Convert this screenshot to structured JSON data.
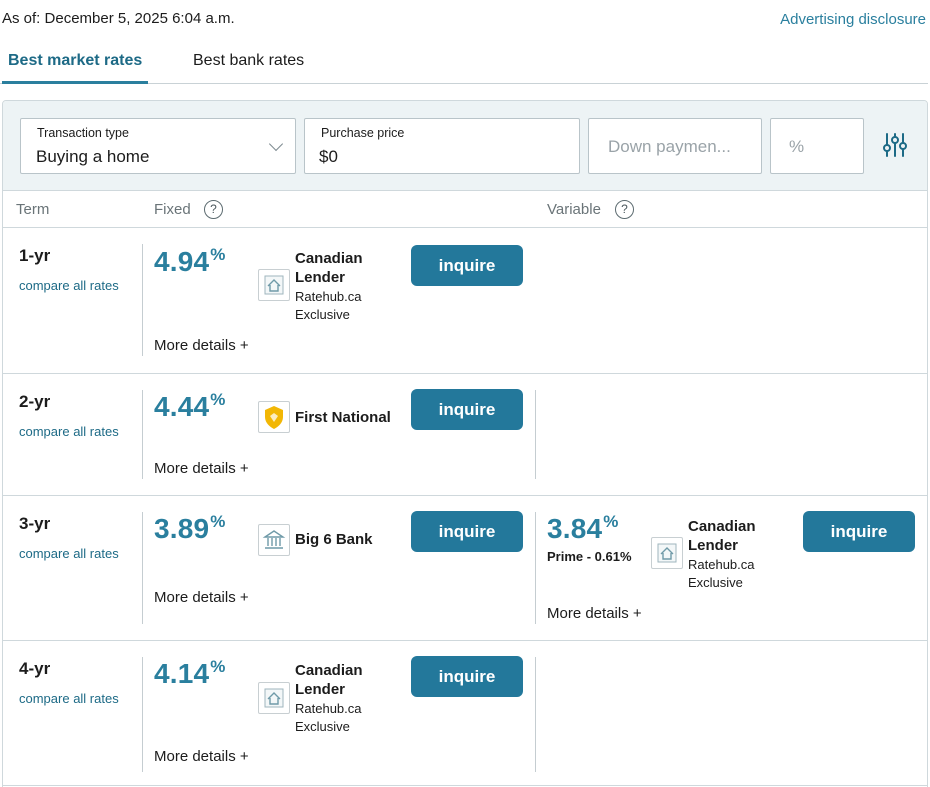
{
  "header": {
    "as_of": "As of: December 5, 2025 6:04 a.m.",
    "advertising_disclosure": "Advertising disclosure"
  },
  "tabs": [
    {
      "label": "Best market rates",
      "active": true
    },
    {
      "label": "Best bank rates",
      "active": false
    }
  ],
  "filters": {
    "transaction_type": {
      "label": "Transaction type",
      "value": "Buying a home"
    },
    "purchase_price": {
      "label": "Purchase price",
      "value": "$0"
    },
    "down_payment": {
      "placeholder": "Down paymen..."
    },
    "percent": {
      "placeholder": "%"
    }
  },
  "columns": {
    "term": "Term",
    "fixed": "Fixed",
    "variable": "Variable",
    "help_glyph": "?"
  },
  "rows": [
    {
      "term": "1-yr",
      "compare": "compare all rates",
      "fixed": {
        "rate": "4.94",
        "unit": "%",
        "lender_line1": "Canadian",
        "lender_line2": "Lender",
        "sub_line1": "Ratehub.ca",
        "sub_line2": "Exclusive",
        "logo": "house-icon",
        "button": "inquire",
        "more": "More details +"
      }
    },
    {
      "term": "2-yr",
      "compare": "compare all rates",
      "fixed": {
        "rate": "4.44",
        "unit": "%",
        "lender_line1": "First National",
        "logo": "first-national-shield-icon",
        "button": "inquire",
        "more": "More details +"
      }
    },
    {
      "term": "3-yr",
      "compare": "compare all rates",
      "fixed": {
        "rate": "3.89",
        "unit": "%",
        "lender_line1": "Big 6 Bank",
        "logo": "bank-building-icon",
        "button": "inquire",
        "more": "More details +"
      },
      "variable": {
        "rate": "3.84",
        "unit": "%",
        "prime": "Prime - 0.61%",
        "lender_line1": "Canadian",
        "lender_line2": "Lender",
        "sub_line1": "Ratehub.ca",
        "sub_line2": "Exclusive",
        "logo": "house-icon",
        "button": "inquire",
        "more": "More details +"
      }
    },
    {
      "term": "4-yr",
      "compare": "compare all rates",
      "fixed": {
        "rate": "4.14",
        "unit": "%",
        "lender_line1": "Canadian",
        "lender_line2": "Lender",
        "sub_line1": "Ratehub.ca",
        "sub_line2": "Exclusive",
        "logo": "house-icon",
        "button": "inquire",
        "more": "More details +"
      }
    }
  ],
  "colors": {
    "accent": "#2a7f9e",
    "button": "#23789b",
    "filter_bg": "#edf3f5",
    "first_national_gold": "#f2b705"
  }
}
